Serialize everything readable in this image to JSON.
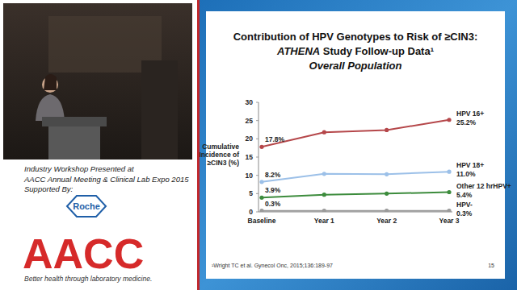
{
  "chart_data": {
    "type": "line",
    "title": "Contribution of HPV Genotypes to Risk of ≥CIN3:",
    "subtitle": "ATHENA Study Follow-up Data¹",
    "y_label": "Cumulative Incidence of ≥CIN3 (%)",
    "categories": [
      "Baseline",
      "Year 1",
      "Year 2",
      "Year 3"
    ],
    "series": [
      {
        "name": "HPV 16+",
        "color": "#b5474a",
        "values": [
          17.8,
          21.8,
          22.4,
          25.2
        ],
        "value_labels": [
          "17.8%",
          null,
          null,
          "25.2%"
        ]
      },
      {
        "name": "HPV 18+",
        "color": "#9cc0e8",
        "values": [
          8.2,
          10.4,
          10.3,
          11.0
        ],
        "value_labels": [
          "8.2%",
          null,
          null,
          "11.0%"
        ]
      },
      {
        "name": "Other 12 hrHPV+",
        "color": "#3d8c3d",
        "values": [
          3.9,
          4.7,
          5.0,
          5.4
        ],
        "value_labels": [
          "3.9%",
          null,
          null,
          "5.4%"
        ]
      },
      {
        "name": "HPV-",
        "color": "#9a9a9a",
        "values": [
          0.3,
          0.3,
          0.3,
          0.3
        ],
        "value_labels": [
          "0.3%",
          null,
          null,
          "0.3%"
        ]
      }
    ],
    "ylim": [
      0,
      30
    ],
    "yticks": [
      0,
      5,
      10,
      15,
      20,
      25,
      30
    ],
    "grid": false,
    "marker": "circle"
  },
  "slide": {
    "heading": "Overall Population",
    "footnote": "¹Wright TC et al. Gynecol Onc, 2015;136:189-97",
    "page_number": "15"
  },
  "caption": {
    "lines": [
      "Industry Workshop Presented at",
      "AACC Annual Meeting & Clinical Lab Expo 2015",
      "Supported By:"
    ],
    "sponsor": "Roche",
    "logo": "AACC",
    "tagline": "Better health through laboratory medicine."
  }
}
